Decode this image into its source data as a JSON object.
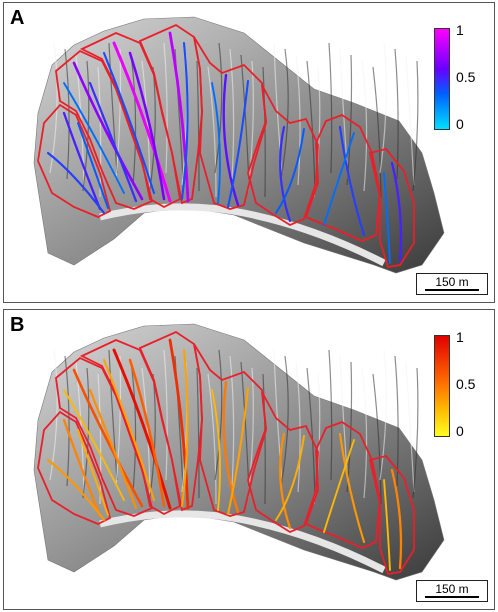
{
  "panels": [
    {
      "letter": "A",
      "scale_label": "150 m",
      "colorbar": {
        "max": "1",
        "mid": "0.5",
        "min": "0"
      },
      "ramp": [
        "#00e0ff",
        "#0060ff",
        "#6a00ff",
        "#ff00ff"
      ]
    },
    {
      "letter": "B",
      "scale_label": "150 m",
      "colorbar": {
        "max": "1",
        "mid": "0.5",
        "min": "0"
      },
      "ramp": [
        "#ffff20",
        "#ffb000",
        "#ff6a00",
        "#e00000"
      ]
    }
  ],
  "colors": {
    "catchment_outline": "#e8202a",
    "terrain_light": "#d8d8d8",
    "terrain_dark": "#3a3a3a"
  }
}
